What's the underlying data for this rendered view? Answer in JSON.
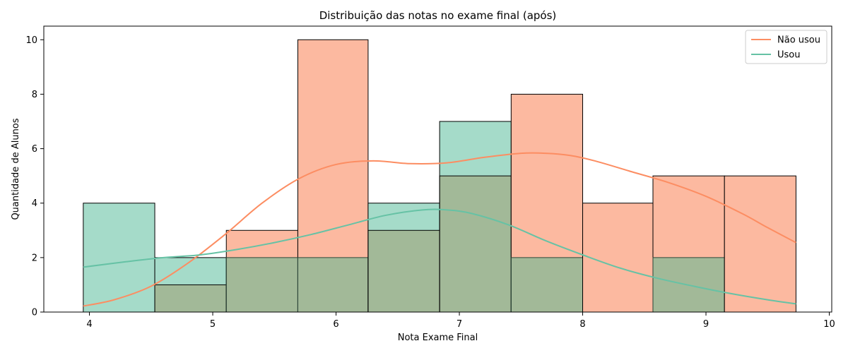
{
  "chart_data": {
    "type": "histogram",
    "title": "Distribuição das notas no exame final (após)",
    "xlabel": "Nota Exame Final",
    "ylabel": "Quantidade de Alunos",
    "xlim": [
      3.63,
      10.02
    ],
    "ylim": [
      0,
      10.5
    ],
    "x_ticks": [
      4,
      5,
      6,
      7,
      8,
      9,
      10
    ],
    "y_ticks": [
      0,
      2,
      4,
      6,
      8,
      10
    ],
    "bin_edges": [
      3.95,
      4.53,
      5.11,
      5.69,
      6.26,
      6.84,
      7.42,
      8.0,
      8.57,
      9.15,
      9.73
    ],
    "grid": false,
    "legend_position": "top-right",
    "series": [
      {
        "name": "Não usou",
        "color": "#fc8d62",
        "fill": "#fcb9a0",
        "counts": [
          0,
          1,
          3,
          10,
          3,
          5,
          8,
          4,
          5,
          5
        ],
        "kde": {
          "x": [
            3.95,
            4.2,
            4.5,
            4.8,
            5.1,
            5.4,
            5.7,
            6.0,
            6.3,
            6.6,
            6.9,
            7.2,
            7.5,
            7.7,
            7.9,
            8.1,
            8.4,
            8.7,
            9.0,
            9.3,
            9.5,
            9.73
          ],
          "y": [
            0.22,
            0.45,
            0.95,
            1.8,
            2.85,
            4.0,
            4.9,
            5.42,
            5.55,
            5.45,
            5.48,
            5.68,
            5.83,
            5.83,
            5.75,
            5.55,
            5.15,
            4.75,
            4.25,
            3.6,
            3.1,
            2.55
          ]
        }
      },
      {
        "name": "Usou",
        "color": "#66c2a5",
        "fill": "#a5dbc9",
        "counts": [
          4,
          2,
          2,
          2,
          4,
          7,
          2,
          0,
          2,
          0
        ],
        "kde": {
          "x": [
            3.95,
            4.3,
            4.6,
            4.9,
            5.2,
            5.5,
            5.8,
            6.1,
            6.4,
            6.7,
            6.9,
            7.1,
            7.4,
            7.7,
            8.0,
            8.3,
            8.6,
            8.9,
            9.2,
            9.5,
            9.73
          ],
          "y": [
            1.65,
            1.85,
            2.0,
            2.1,
            2.3,
            2.55,
            2.85,
            3.2,
            3.55,
            3.75,
            3.75,
            3.62,
            3.2,
            2.62,
            2.1,
            1.62,
            1.25,
            0.95,
            0.68,
            0.45,
            0.3
          ]
        }
      }
    ],
    "overlap_fill": "#a2b998"
  }
}
